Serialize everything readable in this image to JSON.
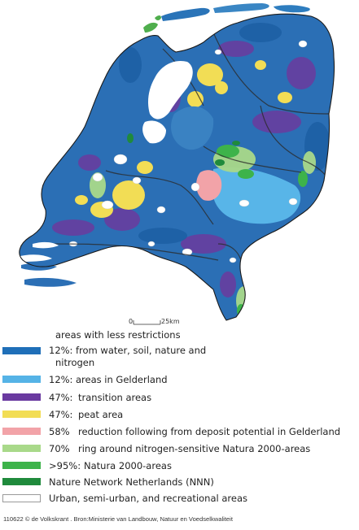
{
  "scale": {
    "zero_label": "0",
    "distance_label": "25km"
  },
  "legend": [
    {
      "pct": "12%:",
      "label_lines": [
        "areas with less restrictions",
        "from water, soil, nature and",
        "nitrogen"
      ],
      "color": "#1f6fb8",
      "swatch": "solid"
    },
    {
      "pct": "12%:",
      "label_lines": [
        "areas in Gelderland"
      ],
      "color": "#55b3e6",
      "swatch": "solid"
    },
    {
      "pct": "47%:",
      "label_lines": [
        "transition areas"
      ],
      "color": "#6a3aa0",
      "swatch": "solid"
    },
    {
      "pct": "47%:",
      "label_lines": [
        "peat area"
      ],
      "color": "#f2dd55",
      "swatch": "solid"
    },
    {
      "pct": "58%",
      "label_lines": [
        "reduction following from deposit potential in Gelderland"
      ],
      "color": "#f2a3a8",
      "swatch": "solid"
    },
    {
      "pct": "70%",
      "label_lines": [
        "ring around nitrogen-sensitive Natura 2000-areas"
      ],
      "color": "#a9d98a",
      "swatch": "solid"
    },
    {
      "pct": ">95%:",
      "label_lines": [
        "Natura 2000-areas"
      ],
      "color": "#3db34a",
      "swatch": "solid"
    },
    {
      "pct": "",
      "label_lines": [
        "Nature Network Netherlands (NNN)"
      ],
      "color": "#1f8a3c",
      "swatch": "solid"
    },
    {
      "pct": "",
      "label_lines": [
        "Urban, semi-urban, and recreational areas"
      ],
      "color": "#ffffff",
      "swatch": "outline"
    }
  ],
  "credit": "110622 © de Volkskrant . Bron:Ministerie van Landbouw, Natuur en Voedselkwaliteit"
}
